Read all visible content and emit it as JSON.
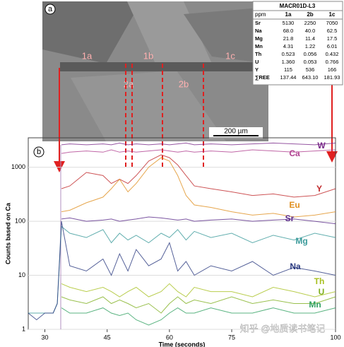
{
  "image": {
    "panel_label": "a",
    "regions": [
      "1a",
      "1b",
      "1c",
      "2a",
      "2b"
    ],
    "scale_bar": "200 µm"
  },
  "table": {
    "title": "MACR01D-L3",
    "header": [
      "ppm",
      "1a",
      "2b",
      "1c"
    ],
    "rows": [
      [
        "Sr",
        "5130",
        "2250",
        "7050"
      ],
      [
        "Na",
        "68.0",
        "40.0",
        "62.5"
      ],
      [
        "Mg",
        "21.8",
        "11.4",
        "17.5"
      ],
      [
        "Mn",
        "4.31",
        "1.22",
        "6.01"
      ],
      [
        "Th",
        "0.523",
        "0.056",
        "0.432"
      ],
      [
        "U",
        "1.360",
        "0.053",
        "0.766"
      ],
      [
        "Y",
        "115",
        "536",
        "166"
      ],
      [
        "∑REE",
        "137.44",
        "643.10",
        "181.93"
      ]
    ]
  },
  "watermark": "知乎 @地质读书笔记",
  "chart_data": {
    "type": "line",
    "panel_label": "b",
    "x_label": "Time (seconds)",
    "y_label": "Counts based on Ca",
    "log_y": true,
    "xlim": [
      26,
      100
    ],
    "xticks": [
      30,
      45,
      60,
      75,
      100
    ],
    "ylim": [
      1,
      3500
    ],
    "yticks": [
      1,
      10,
      100,
      1000
    ],
    "x": [
      26,
      28,
      30,
      32,
      33,
      34,
      36,
      40,
      44,
      46,
      48,
      50,
      52,
      55,
      58,
      60,
      62,
      64,
      66,
      70,
      75,
      80,
      85,
      90,
      95,
      100
    ],
    "series": [
      {
        "name": "W",
        "color": "#7a2a8a",
        "values": [
          null,
          null,
          null,
          null,
          null,
          2600,
          2700,
          2600,
          2700,
          2600,
          2800,
          2600,
          2700,
          2600,
          2700,
          2600,
          2700,
          2800,
          2600,
          2700,
          2600,
          2700,
          2800,
          2700,
          2600,
          2800
        ]
      },
      {
        "name": "Ca",
        "color": "#b04090",
        "values": [
          null,
          null,
          null,
          null,
          null,
          1800,
          1900,
          2000,
          1900,
          2100,
          1900,
          2000,
          1900,
          2000,
          2100,
          2000,
          1900,
          2000,
          1900,
          2000,
          1900,
          2100,
          2000,
          1900,
          2000,
          2100
        ]
      },
      {
        "name": "Y",
        "color": "#c0282a",
        "values": [
          null,
          null,
          null,
          null,
          null,
          400,
          450,
          800,
          700,
          500,
          600,
          500,
          700,
          1300,
          1700,
          1500,
          1100,
          700,
          450,
          400,
          350,
          300,
          320,
          280,
          300,
          400
        ]
      },
      {
        "name": "Eu",
        "color": "#e09020",
        "values": [
          null,
          null,
          null,
          null,
          null,
          150,
          160,
          220,
          280,
          400,
          600,
          350,
          500,
          1000,
          1500,
          1300,
          700,
          300,
          200,
          180,
          150,
          130,
          140,
          120,
          130,
          150
        ]
      },
      {
        "name": "Sr",
        "color": "#5a2a8a",
        "values": [
          null,
          null,
          null,
          null,
          null,
          110,
          115,
          100,
          105,
          110,
          100,
          105,
          110,
          120,
          115,
          110,
          105,
          110,
          100,
          105,
          110,
          100,
          105,
          110,
          100,
          90
        ]
      },
      {
        "name": "Mg",
        "color": "#3a9a9a",
        "values": [
          2,
          2,
          2,
          2,
          3,
          80,
          60,
          50,
          70,
          40,
          60,
          45,
          55,
          40,
          60,
          50,
          70,
          45,
          65,
          50,
          60,
          40,
          55,
          45,
          60,
          50
        ]
      },
      {
        "name": "Na",
        "color": "#2a3a80",
        "values": [
          2,
          1.5,
          2,
          2,
          3,
          100,
          15,
          12,
          20,
          10,
          25,
          12,
          30,
          15,
          20,
          40,
          12,
          18,
          10,
          15,
          12,
          18,
          10,
          14,
          12,
          10
        ]
      },
      {
        "name": "Th",
        "color": "#a8c020",
        "values": [
          null,
          null,
          null,
          null,
          null,
          7,
          6,
          5,
          6,
          5,
          4,
          5,
          6,
          4,
          5,
          7,
          5,
          4,
          6,
          5,
          5,
          4,
          6,
          5,
          4,
          5
        ]
      },
      {
        "name": "U",
        "color": "#80b020",
        "values": [
          null,
          null,
          null,
          null,
          null,
          4,
          3.5,
          3,
          4,
          3,
          3.5,
          3,
          2.5,
          3,
          2,
          3,
          4,
          3,
          3.5,
          3,
          4,
          3,
          3.5,
          3,
          3,
          4
        ]
      },
      {
        "name": "Mn",
        "color": "#30a060",
        "values": [
          null,
          null,
          null,
          null,
          null,
          2.5,
          2,
          2,
          2.5,
          2,
          1.8,
          2,
          1.5,
          1.2,
          1.5,
          2,
          2.5,
          2,
          2,
          2.5,
          2,
          2,
          2.5,
          2,
          2,
          2.5
        ]
      }
    ]
  }
}
